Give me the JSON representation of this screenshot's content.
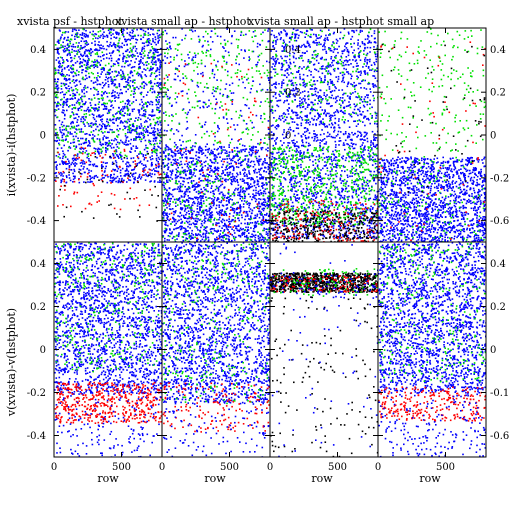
{
  "chart_data": {
    "type": "scatter",
    "titles": [
      "xvista psf - hstphot",
      "xvista small ap - hstphot",
      "xvista small ap - hstphot small ap"
    ],
    "row_labels": [
      "i(xvista)-i(hstphot)",
      "v(xvista)-v(hstphot)"
    ],
    "xlabel": "row",
    "xlim": [
      0,
      800
    ],
    "ylim": [
      -0.5,
      0.5
    ],
    "x_ticks": [
      "0",
      "500"
    ],
    "y_ticks_left": [
      "0.4",
      "0.2",
      "0",
      "-0.2",
      "-0.4"
    ],
    "y_ticks_inner_right": [
      "0.4",
      "0.2",
      "0"
    ],
    "y_ticks_right_top": [
      "0.4",
      "0.2",
      "0",
      "-0.2",
      "-0.6"
    ],
    "y_ticks_right_bottom": [
      "0.4",
      "0.2",
      "0",
      "-0.1",
      "-0.6"
    ],
    "panels": [
      {
        "id": "i-psf",
        "bands": [
          {
            "color": "#0000ff",
            "y": [
              -0.22,
              0.5
            ],
            "n": 1800
          },
          {
            "color": "#00e000",
            "y": [
              -0.1,
              0.5
            ],
            "n": 380
          },
          {
            "color": "#ff0000",
            "y": [
              -0.35,
              -0.05
            ],
            "n": 90
          },
          {
            "color": "#000000",
            "y": [
              -0.4,
              -0.08
            ],
            "n": 40
          }
        ]
      },
      {
        "id": "i-smallap",
        "bands": [
          {
            "color": "#0000ff",
            "y": [
              -0.5,
              -0.05
            ],
            "n": 1600
          },
          {
            "color": "#0000ff",
            "y": [
              -0.05,
              0.5
            ],
            "n": 260
          },
          {
            "color": "#00e000",
            "y": [
              -0.5,
              0.5
            ],
            "n": 420
          },
          {
            "color": "#ff0000",
            "y": [
              -0.5,
              0.35
            ],
            "n": 80
          }
        ]
      },
      {
        "id": "i-smallap-smallap",
        "bands": [
          {
            "color": "#0000ff",
            "y": [
              -0.48,
              0.5
            ],
            "n": 2000
          },
          {
            "color": "#00e000",
            "y": [
              -0.42,
              -0.05
            ],
            "n": 600
          },
          {
            "color": "#00e000",
            "y": [
              0.05,
              0.5
            ],
            "n": 180
          },
          {
            "color": "#000000",
            "y": [
              -0.5,
              -0.35
            ],
            "n": 380
          },
          {
            "color": "#ff0000",
            "y": [
              -0.5,
              -0.3
            ],
            "n": 160
          }
        ]
      },
      {
        "id": "i-right",
        "bands": [
          {
            "color": "#0000ff",
            "y": [
              -0.5,
              -0.1
            ],
            "n": 1600
          },
          {
            "color": "#00e000",
            "y": [
              -0.5,
              0.5
            ],
            "n": 320
          },
          {
            "color": "#ff0000",
            "y": [
              -0.5,
              0.5
            ],
            "n": 60
          },
          {
            "color": "#000000",
            "y": [
              -0.3,
              0.5
            ],
            "n": 60
          }
        ]
      },
      {
        "id": "v-psf",
        "bands": [
          {
            "color": "#0000ff",
            "y": [
              -0.2,
              0.5
            ],
            "n": 1900
          },
          {
            "color": "#00e000",
            "y": [
              -0.1,
              0.5
            ],
            "n": 300
          },
          {
            "color": "#ff0000",
            "y": [
              -0.34,
              -0.15
            ],
            "n": 480
          },
          {
            "color": "#0000ff",
            "y": [
              -0.5,
              -0.2
            ],
            "n": 160
          }
        ]
      },
      {
        "id": "v-smallap",
        "bands": [
          {
            "color": "#0000ff",
            "y": [
              -0.25,
              0.5
            ],
            "n": 1900
          },
          {
            "color": "#00e000",
            "y": [
              -0.25,
              0.5
            ],
            "n": 280
          },
          {
            "color": "#ff0000",
            "y": [
              -0.38,
              -0.15
            ],
            "n": 150
          },
          {
            "color": "#0000ff",
            "y": [
              -0.5,
              -0.25
            ],
            "n": 100
          }
        ]
      },
      {
        "id": "v-smallap-smallap",
        "bands": [
          {
            "color": "#000000",
            "y": [
              0.27,
              0.36
            ],
            "n": 900
          },
          {
            "color": "#ff0000",
            "y": [
              0.27,
              0.35
            ],
            "n": 120
          },
          {
            "color": "#00e000",
            "y": [
              0.25,
              0.38
            ],
            "n": 80
          },
          {
            "color": "#0000ff",
            "y": [
              0.24,
              0.36
            ],
            "n": 80
          },
          {
            "color": "#000000",
            "y": [
              -0.5,
              0.25
            ],
            "n": 140
          },
          {
            "color": "#0000ff",
            "y": [
              -0.5,
              0.5
            ],
            "n": 70
          }
        ]
      },
      {
        "id": "v-right",
        "bands": [
          {
            "color": "#0000ff",
            "y": [
              -0.2,
              0.5
            ],
            "n": 1900
          },
          {
            "color": "#00e000",
            "y": [
              -0.15,
              0.5
            ],
            "n": 280
          },
          {
            "color": "#ff0000",
            "y": [
              -0.33,
              -0.17
            ],
            "n": 260
          },
          {
            "color": "#0000ff",
            "y": [
              -0.5,
              -0.2
            ],
            "n": 180
          }
        ]
      }
    ]
  }
}
